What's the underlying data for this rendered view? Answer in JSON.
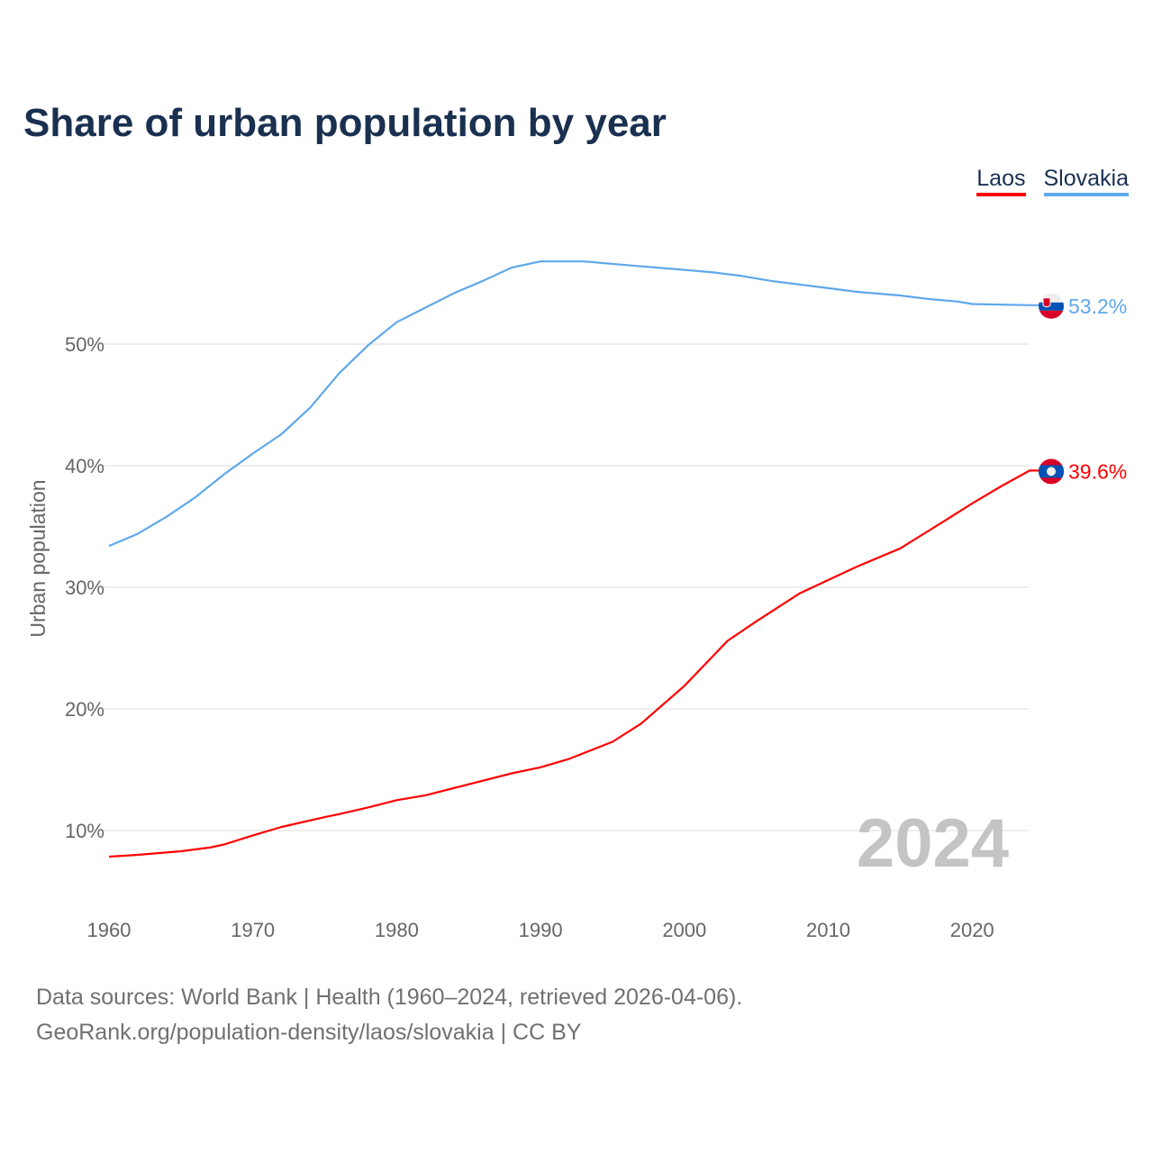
{
  "chart_data": {
    "type": "line",
    "title": "Share of urban population by year",
    "xlabel": "",
    "ylabel": "Urban population",
    "xlim": [
      1960,
      2024
    ],
    "ylim": [
      0,
      60
    ],
    "x_ticks": [
      1960,
      1970,
      1980,
      1990,
      2000,
      2010,
      2020
    ],
    "x_tick_labels": [
      "1960",
      "1970",
      "1980",
      "1990",
      "2000",
      "2010",
      "2020"
    ],
    "y_ticks": [
      10,
      20,
      30,
      40,
      50
    ],
    "y_tick_labels": [
      "10%",
      "20%",
      "30%",
      "40%",
      "50%"
    ],
    "grid": true,
    "legend_position": "top-right",
    "year_watermark": "2024",
    "series": [
      {
        "name": "Laos",
        "color": "#ff0000",
        "end_label": "39.6%",
        "flag": "laos-flag",
        "points": [
          [
            1960,
            7.85
          ],
          [
            1962,
            8.0
          ],
          [
            1965,
            8.3
          ],
          [
            1967,
            8.6
          ],
          [
            1968,
            8.85
          ],
          [
            1970,
            9.6
          ],
          [
            1972,
            10.3
          ],
          [
            1975,
            11.1
          ],
          [
            1976,
            11.35
          ],
          [
            1978,
            11.9
          ],
          [
            1980,
            12.5
          ],
          [
            1982,
            12.9
          ],
          [
            1985,
            13.8
          ],
          [
            1988,
            14.7
          ],
          [
            1990,
            15.2
          ],
          [
            1992,
            15.9
          ],
          [
            1995,
            17.3
          ],
          [
            1997,
            18.8
          ],
          [
            2000,
            21.9
          ],
          [
            2003,
            25.6
          ],
          [
            2005,
            27.2
          ],
          [
            2008,
            29.5
          ],
          [
            2010,
            30.6
          ],
          [
            2012,
            31.7
          ],
          [
            2015,
            33.2
          ],
          [
            2018,
            35.4
          ],
          [
            2020,
            36.9
          ],
          [
            2022,
            38.3
          ],
          [
            2024,
            39.6
          ]
        ]
      },
      {
        "name": "Slovakia",
        "color": "#5fa8ea",
        "end_label": "53.2%",
        "flag": "slovakia-flag",
        "points": [
          [
            1960,
            33.4
          ],
          [
            1962,
            34.4
          ],
          [
            1964,
            35.8
          ],
          [
            1966,
            37.4
          ],
          [
            1968,
            39.3
          ],
          [
            1970,
            41.0
          ],
          [
            1972,
            42.6
          ],
          [
            1974,
            44.8
          ],
          [
            1976,
            47.6
          ],
          [
            1978,
            49.9
          ],
          [
            1980,
            51.8
          ],
          [
            1982,
            53.0
          ],
          [
            1984,
            54.2
          ],
          [
            1986,
            55.2
          ],
          [
            1988,
            56.3
          ],
          [
            1990,
            56.8
          ],
          [
            1993,
            56.8
          ],
          [
            1996,
            56.5
          ],
          [
            2000,
            56.1
          ],
          [
            2002,
            55.9
          ],
          [
            2004,
            55.6
          ],
          [
            2006,
            55.2
          ],
          [
            2008,
            54.9
          ],
          [
            2010,
            54.6
          ],
          [
            2012,
            54.3
          ],
          [
            2015,
            54.0
          ],
          [
            2017,
            53.7
          ],
          [
            2019,
            53.5
          ],
          [
            2020,
            53.3
          ],
          [
            2024,
            53.2
          ]
        ]
      }
    ]
  },
  "footer": {
    "line1": "Data sources: World Bank | Health (1960–2024, retrieved 2026-04-06).",
    "line2": "GeoRank.org/population-density/laos/slovakia | CC BY"
  }
}
